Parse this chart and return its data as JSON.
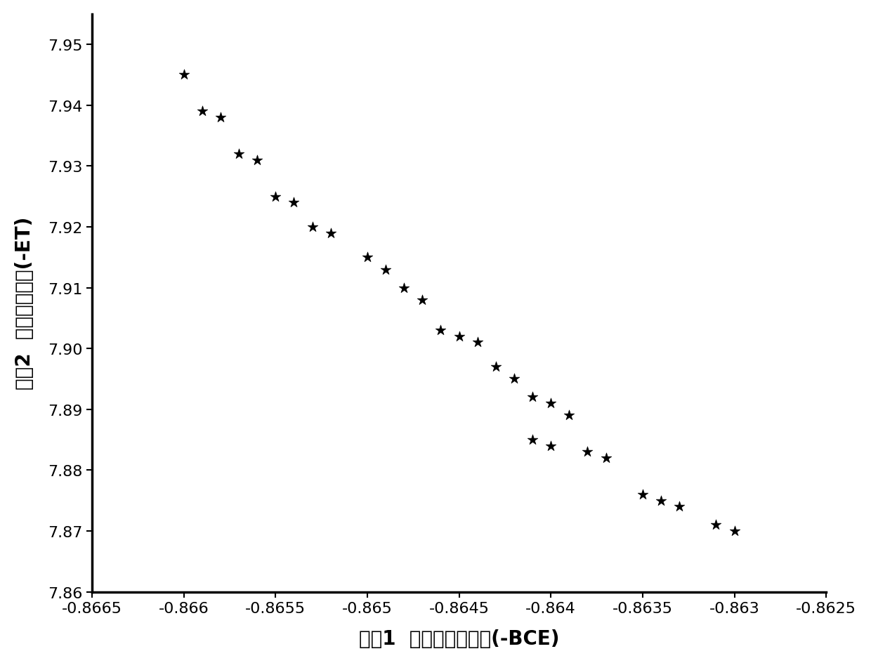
{
  "x": [
    -0.866,
    -0.8659,
    -0.8658,
    -0.8657,
    -0.8656,
    -0.8655,
    -0.8654,
    -0.8653,
    -0.8652,
    -0.865,
    -0.8649,
    -0.8648,
    -0.8647,
    -0.8646,
    -0.8645,
    -0.8644,
    -0.8643,
    -0.8642,
    -0.8641,
    -0.864,
    -0.8639,
    -0.8641,
    -0.864,
    -0.8638,
    -0.8637,
    -0.8635,
    -0.8634,
    -0.8633,
    -0.8631,
    -0.863
  ],
  "y": [
    7.945,
    7.939,
    7.938,
    7.932,
    7.931,
    7.925,
    7.924,
    7.92,
    7.919,
    7.915,
    7.913,
    7.91,
    7.908,
    7.903,
    7.902,
    7.901,
    7.897,
    7.895,
    7.892,
    7.891,
    7.889,
    7.885,
    7.884,
    7.883,
    7.882,
    7.876,
    7.875,
    7.874,
    7.871,
    7.87
  ],
  "xlim": [
    -0.8665,
    -0.8625
  ],
  "ylim": [
    7.86,
    7.955
  ],
  "xtick_vals": [
    -0.8665,
    -0.866,
    -0.8655,
    -0.865,
    -0.8645,
    -0.864,
    -0.8635,
    -0.863,
    -0.8625
  ],
  "xtick_labels": [
    "-0.8665",
    "-0.866",
    "-0.8655",
    "-0.865",
    "-0.8645",
    "-0.864",
    "-0.8635",
    "-0.863",
    "-0.8625"
  ],
  "ytick_vals": [
    7.86,
    7.87,
    7.88,
    7.89,
    7.9,
    7.91,
    7.92,
    7.93,
    7.94,
    7.95
  ],
  "ytick_labels": [
    "7.86",
    "7.87",
    "7.88",
    "7.89",
    "7.90",
    "7.91",
    "7.92",
    "7.93",
    "7.94",
    "7.95"
  ],
  "xlabel": "目朇1  负波束收集效率(-BCE)",
  "ylabel": "目朇2  负边缘锥削値(-ET)",
  "marker_color": "#000000",
  "marker_size": 120,
  "background_color": "#ffffff",
  "label_fontsize": 20,
  "tick_fontsize": 16,
  "spine_linewidth": 2.5
}
